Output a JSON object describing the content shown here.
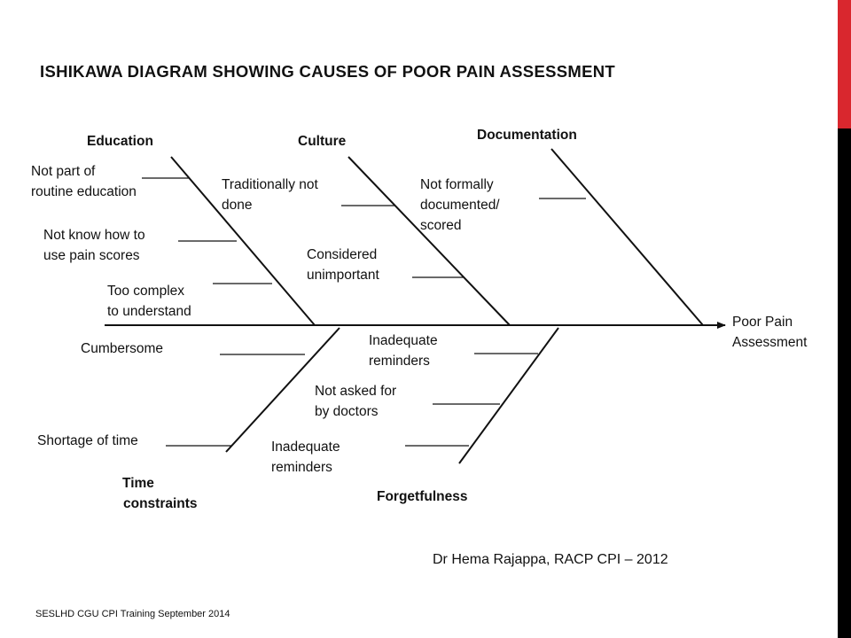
{
  "title": "ISHIKAWA DIAGRAM SHOWING CAUSES OF POOR PAIN ASSESSMENT",
  "effect": [
    "Poor Pain",
    "Assessment"
  ],
  "categories": {
    "education": "Education",
    "culture": "Culture",
    "documentation": "Documentation",
    "time": [
      "Time",
      "constraints"
    ],
    "forgetfulness": "Forgetfulness"
  },
  "causes": {
    "education": [
      [
        "Not part of",
        "routine  education"
      ],
      [
        "Not know how to",
        "use pain scores"
      ],
      [
        "Too complex",
        "to understand"
      ]
    ],
    "culture": [
      [
        "Traditionally  not",
        "done"
      ],
      [
        "Considered",
        "unimportant"
      ]
    ],
    "documentation": [
      [
        "Not formally",
        "documented/",
        "scored"
      ]
    ],
    "time": [
      [
        "Cumbersome"
      ],
      [
        "Shortage of time"
      ]
    ],
    "forgetfulness": [
      [
        "Inadequate",
        "reminders"
      ],
      [
        "Not asked for",
        "by doctors"
      ],
      [
        "Inadequate",
        "reminders"
      ]
    ]
  },
  "credit": "Dr Hema Rajappa, RACP CPI – 2012",
  "footer": "SESLHD CGU CPI Training   September 2014",
  "colors": {
    "accent": "#d9272e",
    "bar": "#000000",
    "lines": "#111111"
  }
}
